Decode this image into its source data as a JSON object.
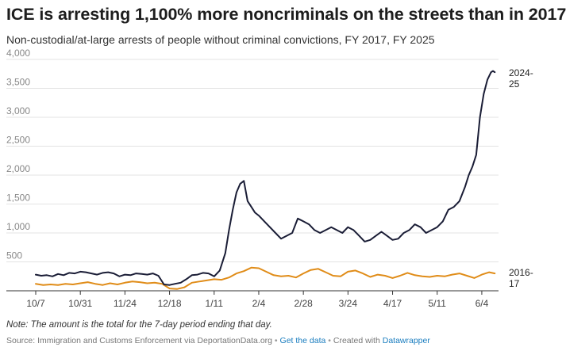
{
  "chart_data": {
    "type": "line",
    "title": "ICE is arresting 1,100% more noncriminals on the streets than in 2017",
    "subtitle": "Non-custodial/at-large arrests of people without criminal convictions, FY 2017, FY 2025",
    "xlabel": "",
    "ylabel": "",
    "ylim": [
      0,
      4000
    ],
    "yticks": [
      500,
      1000,
      1500,
      2000,
      2500,
      3000,
      3500,
      4000
    ],
    "ytick_labels": [
      "500",
      "1,000",
      "1,500",
      "2,000",
      "2,500",
      "3,000",
      "3,500",
      "4,000"
    ],
    "xlim": [
      0,
      249
    ],
    "xticks": [
      0,
      24,
      48,
      72,
      96,
      120,
      144,
      168,
      192,
      216,
      240
    ],
    "xtick_labels": [
      "10/7",
      "10/31",
      "11/24",
      "12/18",
      "1/11",
      "2/4",
      "2/28",
      "3/24",
      "4/17",
      "5/11",
      "6/4"
    ],
    "grid": true,
    "series": [
      {
        "name": "2024-25",
        "label_line1": "2024-",
        "label_line2": "25",
        "color": "#1a1d36",
        "x": [
          0,
          3,
          6,
          9,
          12,
          15,
          18,
          21,
          24,
          27,
          30,
          33,
          36,
          39,
          42,
          45,
          48,
          51,
          54,
          57,
          60,
          63,
          66,
          69,
          72,
          75,
          78,
          81,
          84,
          87,
          90,
          93,
          96,
          99,
          102,
          104,
          106,
          108,
          110,
          112,
          114,
          116,
          118,
          120,
          123,
          126,
          129,
          132,
          135,
          138,
          141,
          144,
          147,
          150,
          153,
          156,
          159,
          162,
          165,
          168,
          171,
          174,
          177,
          180,
          183,
          186,
          189,
          192,
          195,
          198,
          201,
          204,
          207,
          210,
          213,
          216,
          219,
          222,
          225,
          228,
          231,
          233,
          235,
          237,
          239,
          241,
          243,
          245,
          246,
          247
        ],
        "values": [
          280,
          260,
          270,
          250,
          290,
          270,
          310,
          300,
          330,
          320,
          300,
          280,
          310,
          320,
          300,
          250,
          280,
          270,
          300,
          290,
          280,
          300,
          260,
          110,
          100,
          120,
          140,
          200,
          270,
          280,
          310,
          300,
          250,
          350,
          650,
          1050,
          1400,
          1700,
          1850,
          1900,
          1550,
          1450,
          1350,
          1300,
          1200,
          1100,
          1000,
          900,
          950,
          1000,
          1250,
          1200,
          1150,
          1050,
          1000,
          1050,
          1100,
          1050,
          1000,
          1100,
          1050,
          950,
          850,
          880,
          950,
          1020,
          950,
          880,
          900,
          1000,
          1050,
          1150,
          1100,
          1000,
          1050,
          1100,
          1200,
          1400,
          1450,
          1550,
          1800,
          2000,
          2150,
          2350,
          3000,
          3400,
          3650,
          3780,
          3800,
          3780
        ]
      },
      {
        "name": "2016-17",
        "label_line1": "2016-",
        "label_line2": "17",
        "color": "#e08c18",
        "x": [
          0,
          4,
          8,
          12,
          16,
          20,
          24,
          28,
          32,
          36,
          40,
          44,
          48,
          52,
          56,
          60,
          64,
          68,
          72,
          76,
          80,
          84,
          88,
          92,
          96,
          100,
          104,
          108,
          112,
          116,
          120,
          124,
          128,
          132,
          136,
          140,
          144,
          148,
          152,
          156,
          160,
          164,
          168,
          172,
          176,
          180,
          184,
          188,
          192,
          196,
          200,
          204,
          208,
          212,
          216,
          220,
          224,
          228,
          232,
          236,
          240,
          244,
          247
        ],
        "values": [
          120,
          100,
          110,
          100,
          120,
          110,
          130,
          150,
          120,
          100,
          130,
          110,
          140,
          160,
          150,
          130,
          140,
          120,
          40,
          30,
          60,
          140,
          160,
          180,
          200,
          190,
          230,
          300,
          340,
          400,
          390,
          330,
          270,
          250,
          260,
          230,
          300,
          360,
          380,
          320,
          260,
          250,
          330,
          350,
          300,
          240,
          280,
          260,
          220,
          260,
          310,
          270,
          250,
          240,
          260,
          250,
          280,
          300,
          260,
          220,
          280,
          320,
          300
        ]
      }
    ]
  },
  "note": "Note: The amount is the total for the 7-day period ending that day.",
  "source": {
    "prefix": "Source: Immigration and Customs Enforcement via DeportationData.org",
    "separator": "•",
    "get_data": "Get the data",
    "created_with": "Created with",
    "tool": "Datawrapper"
  }
}
